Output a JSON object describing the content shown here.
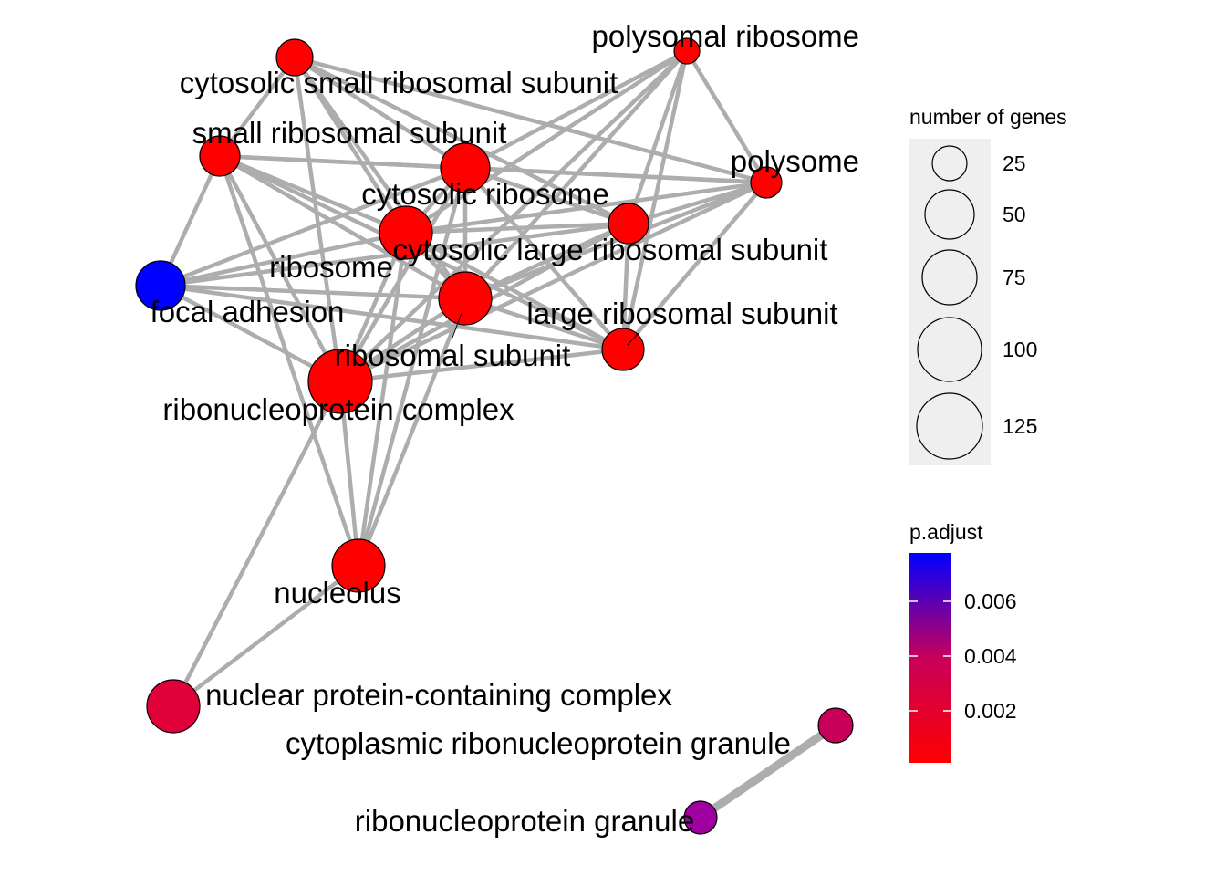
{
  "network": {
    "nodes": [
      {
        "id": "cytosolic small ribosomal subunit",
        "label": "cytosolic small ribosomal subunit",
        "p_adjust_level": "lowest",
        "color": "#ff0000"
      },
      {
        "id": "polysomal ribosome",
        "label": "polysomal ribosome",
        "p_adjust_level": "lowest",
        "color": "#ff0000"
      },
      {
        "id": "small ribosomal subunit",
        "label": "small ribosomal subunit",
        "p_adjust_level": "lowest",
        "color": "#ff0000"
      },
      {
        "id": "cytosolic ribosome",
        "label": "cytosolic ribosome",
        "p_adjust_level": "lowest",
        "color": "#ff0000"
      },
      {
        "id": "polysome",
        "label": "polysome",
        "p_adjust_level": "lowest",
        "color": "#ff0000"
      },
      {
        "id": "ribosome",
        "label": "ribosome",
        "p_adjust_level": "lowest",
        "color": "#ff0000"
      },
      {
        "id": "cytosolic large ribosomal subunit",
        "label": "cytosolic large ribosomal subunit",
        "p_adjust_level": "lowest",
        "color": "#ff0000"
      },
      {
        "id": "focal adhesion",
        "label": "focal adhesion",
        "p_adjust_level": "highest",
        "color": "#0000ff"
      },
      {
        "id": "ribosomal subunit",
        "label": "ribosomal subunit",
        "p_adjust_level": "lowest",
        "color": "#ff0000"
      },
      {
        "id": "large ribosomal subunit",
        "label": "large ribosomal subunit",
        "p_adjust_level": "lowest",
        "color": "#ff0000"
      },
      {
        "id": "ribonucleoprotein complex",
        "label": "ribonucleoprotein complex",
        "p_adjust_level": "lowest",
        "color": "#ff0000"
      },
      {
        "id": "nucleolus",
        "label": "nucleolus",
        "p_adjust_level": "lowest",
        "color": "#ff0000"
      },
      {
        "id": "nuclear protein-containing complex",
        "label": "nuclear protein-containing complex",
        "p_adjust_level": "low",
        "color": "#e0003a"
      },
      {
        "id": "cytoplasmic ribonucleoprotein granule",
        "label": "cytoplasmic ribonucleoprotein granule",
        "p_adjust_level": "medium",
        "color": "#c8005a"
      },
      {
        "id": "ribonucleoprotein granule",
        "label": "ribonucleoprotein granule",
        "p_adjust_level": "medium-high",
        "color": "#a000a0"
      }
    ],
    "edges": [
      [
        "cytosolic small ribosomal subunit",
        "small ribosomal subunit"
      ],
      [
        "cytosolic small ribosomal subunit",
        "cytosolic ribosome"
      ],
      [
        "cytosolic small ribosomal subunit",
        "ribosome"
      ],
      [
        "cytosolic small ribosomal subunit",
        "ribosomal subunit"
      ],
      [
        "cytosolic small ribosomal subunit",
        "ribonucleoprotein complex"
      ],
      [
        "cytosolic small ribosomal subunit",
        "polysome"
      ],
      [
        "cytosolic small ribosomal subunit",
        "cytosolic large ribosomal subunit"
      ],
      [
        "small ribosomal subunit",
        "cytosolic ribosome"
      ],
      [
        "small ribosomal subunit",
        "ribosome"
      ],
      [
        "small ribosomal subunit",
        "ribosomal subunit"
      ],
      [
        "small ribosomal subunit",
        "ribonucleoprotein complex"
      ],
      [
        "small ribosomal subunit",
        "focal adhesion"
      ],
      [
        "small ribosomal subunit",
        "polysome"
      ],
      [
        "small ribosomal subunit",
        "large ribosomal subunit"
      ],
      [
        "small ribosomal subunit",
        "nucleolus"
      ],
      [
        "polysomal ribosome",
        "polysome"
      ],
      [
        "polysomal ribosome",
        "cytosolic ribosome"
      ],
      [
        "polysomal ribosome",
        "ribosome"
      ],
      [
        "polysomal ribosome",
        "cytosolic large ribosomal subunit"
      ],
      [
        "polysomal ribosome",
        "ribosomal subunit"
      ],
      [
        "polysomal ribosome",
        "large ribosomal subunit"
      ],
      [
        "polysomal ribosome",
        "ribonucleoprotein complex"
      ],
      [
        "cytosolic ribosome",
        "ribosome"
      ],
      [
        "cytosolic ribosome",
        "cytosolic large ribosomal subunit"
      ],
      [
        "cytosolic ribosome",
        "ribosomal subunit"
      ],
      [
        "cytosolic ribosome",
        "large ribosomal subunit"
      ],
      [
        "cytosolic ribosome",
        "ribonucleoprotein complex"
      ],
      [
        "cytosolic ribosome",
        "polysome"
      ],
      [
        "cytosolic ribosome",
        "focal adhesion"
      ],
      [
        "cytosolic ribosome",
        "nucleolus"
      ],
      [
        "polysome",
        "cytosolic large ribosomal subunit"
      ],
      [
        "polysome",
        "ribosome"
      ],
      [
        "polysome",
        "ribosomal subunit"
      ],
      [
        "polysome",
        "large ribosomal subunit"
      ],
      [
        "polysome",
        "ribonucleoprotein complex"
      ],
      [
        "ribosome",
        "cytosolic large ribosomal subunit"
      ],
      [
        "ribosome",
        "ribosomal subunit"
      ],
      [
        "ribosome",
        "large ribosomal subunit"
      ],
      [
        "ribosome",
        "ribonucleoprotein complex"
      ],
      [
        "ribosome",
        "focal adhesion"
      ],
      [
        "ribosome",
        "nucleolus"
      ],
      [
        "cytosolic large ribosomal subunit",
        "ribosomal subunit"
      ],
      [
        "cytosolic large ribosomal subunit",
        "large ribosomal subunit"
      ],
      [
        "cytosolic large ribosomal subunit",
        "ribonucleoprotein complex"
      ],
      [
        "cytosolic large ribosomal subunit",
        "focal adhesion"
      ],
      [
        "ribosomal subunit",
        "large ribosomal subunit"
      ],
      [
        "ribosomal subunit",
        "ribonucleoprotein complex"
      ],
      [
        "ribosomal subunit",
        "focal adhesion"
      ],
      [
        "ribosomal subunit",
        "nucleolus"
      ],
      [
        "large ribosomal subunit",
        "ribonucleoprotein complex"
      ],
      [
        "large ribosomal subunit",
        "focal adhesion"
      ],
      [
        "focal adhesion",
        "ribonucleoprotein complex"
      ],
      [
        "ribonucleoprotein complex",
        "nucleolus"
      ],
      [
        "ribonucleoprotein complex",
        "nuclear protein-containing complex"
      ],
      [
        "nucleolus",
        "nuclear protein-containing complex"
      ],
      [
        "cytoplasmic ribonucleoprotein granule",
        "ribonucleoprotein granule"
      ]
    ]
  },
  "legend": {
    "size": {
      "title": "number of genes",
      "items": [
        {
          "label": "25",
          "genes": 25
        },
        {
          "label": "50",
          "genes": 50
        },
        {
          "label": "75",
          "genes": 75
        },
        {
          "label": "100",
          "genes": 100
        },
        {
          "label": "125",
          "genes": 125
        }
      ],
      "background": "#efefef"
    },
    "color": {
      "title": "p.adjust",
      "gradient_low": "#ff0000",
      "gradient_high": "#0000ff",
      "ticks": [
        "0.006",
        "0.004",
        "0.002"
      ]
    }
  }
}
